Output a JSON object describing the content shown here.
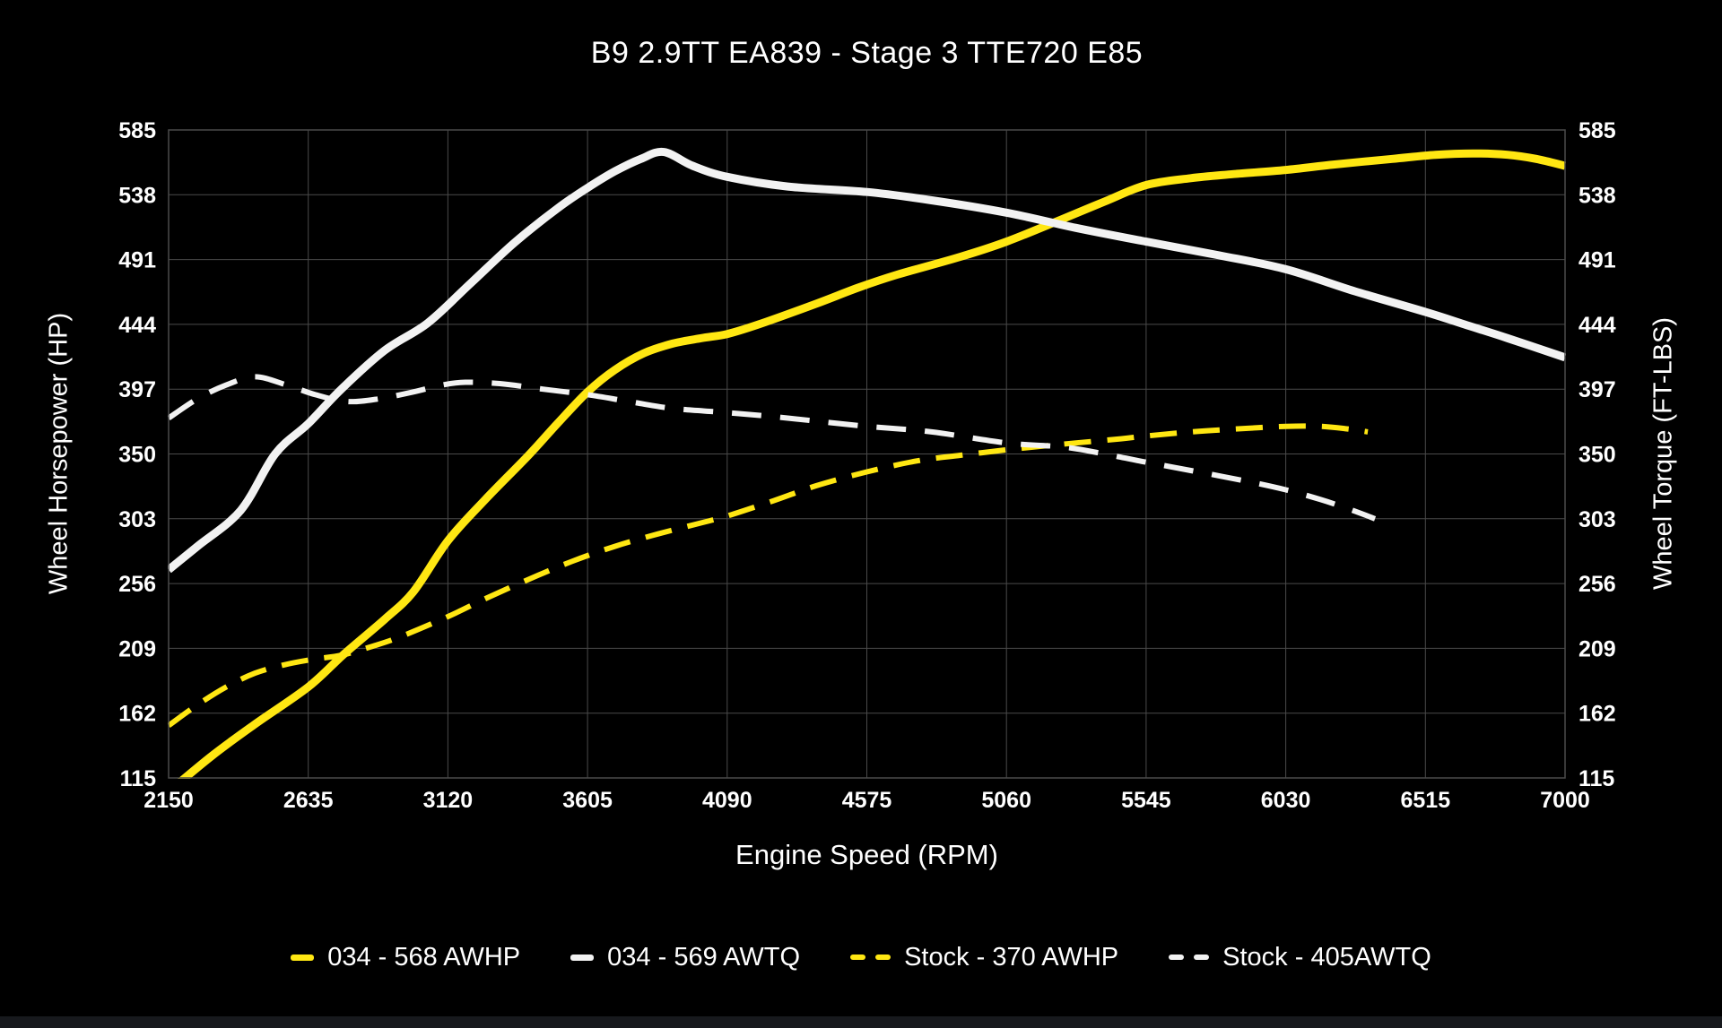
{
  "chart_data": {
    "type": "line",
    "title": "B9 2.9TT EA839 - Stage 3 TTE720 E85",
    "xlabel": "Engine Speed (RPM)",
    "ylabel_left": "Wheel Horsepower (HP)",
    "ylabel_right": "Wheel Torque (FT-LBS)",
    "x_range": [
      2150,
      7000
    ],
    "y_range": [
      115,
      585
    ],
    "x_ticks": [
      2150,
      2635,
      3120,
      3605,
      4090,
      4575,
      5060,
      5545,
      6030,
      6515,
      7000
    ],
    "y_ticks": [
      115,
      162,
      209,
      256,
      303,
      350,
      397,
      444,
      491,
      538,
      585
    ],
    "grid": true,
    "legend_position": "bottom",
    "colors": {
      "yellow": "#ffe712",
      "white": "#f2f2f2",
      "grid": "#4a4a4a",
      "background": "#000000",
      "text": "#ffffff"
    },
    "series": [
      {
        "name": "034 - 568 AWHP",
        "color": "yellow",
        "style": "solid",
        "points": [
          [
            2150,
            105
          ],
          [
            2300,
            131
          ],
          [
            2450,
            154
          ],
          [
            2635,
            181
          ],
          [
            2760,
            205
          ],
          [
            2900,
            230
          ],
          [
            3000,
            250
          ],
          [
            3120,
            287
          ],
          [
            3250,
            317
          ],
          [
            3400,
            349
          ],
          [
            3500,
            372
          ],
          [
            3605,
            395
          ],
          [
            3700,
            411
          ],
          [
            3800,
            423
          ],
          [
            3900,
            430
          ],
          [
            4000,
            434
          ],
          [
            4090,
            437
          ],
          [
            4200,
            444
          ],
          [
            4400,
            459
          ],
          [
            4550,
            471
          ],
          [
            4680,
            480
          ],
          [
            4900,
            493
          ],
          [
            5060,
            504
          ],
          [
            5250,
            520
          ],
          [
            5400,
            533
          ],
          [
            5545,
            545
          ],
          [
            5700,
            550
          ],
          [
            5850,
            553
          ],
          [
            6030,
            556
          ],
          [
            6200,
            560
          ],
          [
            6400,
            564
          ],
          [
            6550,
            567
          ],
          [
            6680,
            568
          ],
          [
            6800,
            567
          ],
          [
            6900,
            564
          ],
          [
            7000,
            559
          ]
        ]
      },
      {
        "name": "034 - 569 AWTQ",
        "color": "white",
        "style": "solid",
        "points": [
          [
            2150,
            266
          ],
          [
            2250,
            283
          ],
          [
            2400,
            309
          ],
          [
            2520,
            350
          ],
          [
            2635,
            372
          ],
          [
            2750,
            397
          ],
          [
            2900,
            425
          ],
          [
            3050,
            445
          ],
          [
            3200,
            474
          ],
          [
            3350,
            503
          ],
          [
            3500,
            528
          ],
          [
            3605,
            543
          ],
          [
            3700,
            555
          ],
          [
            3790,
            564
          ],
          [
            3870,
            569
          ],
          [
            3970,
            559
          ],
          [
            4090,
            551
          ],
          [
            4300,
            544
          ],
          [
            4575,
            540
          ],
          [
            4800,
            534
          ],
          [
            5060,
            525
          ],
          [
            5300,
            514
          ],
          [
            5545,
            504
          ],
          [
            5800,
            494
          ],
          [
            6030,
            484
          ],
          [
            6270,
            468
          ],
          [
            6515,
            453
          ],
          [
            6650,
            444
          ],
          [
            6800,
            434
          ],
          [
            7000,
            420
          ]
        ]
      },
      {
        "name": "Stock - 370 AWHP",
        "color": "yellow",
        "style": "dashed",
        "points": [
          [
            2150,
            153
          ],
          [
            2250,
            168
          ],
          [
            2350,
            181
          ],
          [
            2450,
            191
          ],
          [
            2550,
            197
          ],
          [
            2650,
            201
          ],
          [
            2750,
            204
          ],
          [
            2850,
            210
          ],
          [
            2950,
            217
          ],
          [
            3120,
            232
          ],
          [
            3250,
            245
          ],
          [
            3400,
            259
          ],
          [
            3550,
            272
          ],
          [
            3700,
            283
          ],
          [
            3850,
            292
          ],
          [
            4000,
            300
          ],
          [
            4090,
            305
          ],
          [
            4250,
            316
          ],
          [
            4400,
            327
          ],
          [
            4575,
            337
          ],
          [
            4750,
            345
          ],
          [
            4900,
            349
          ],
          [
            5060,
            353
          ],
          [
            5200,
            356
          ],
          [
            5302,
            358
          ],
          [
            5457,
            361
          ],
          [
            5545,
            363
          ],
          [
            5700,
            366
          ],
          [
            5850,
            368
          ],
          [
            6030,
            370
          ],
          [
            6150,
            370
          ],
          [
            6250,
            368
          ],
          [
            6315,
            366
          ]
        ]
      },
      {
        "name": "Stock - 405AWTQ",
        "color": "white",
        "style": "dashed",
        "points": [
          [
            2150,
            376
          ],
          [
            2250,
            390
          ],
          [
            2350,
            400
          ],
          [
            2450,
            406
          ],
          [
            2560,
            400
          ],
          [
            2660,
            393
          ],
          [
            2770,
            388
          ],
          [
            2880,
            390
          ],
          [
            3000,
            395
          ],
          [
            3100,
            400
          ],
          [
            3180,
            402
          ],
          [
            3300,
            401
          ],
          [
            3450,
            397
          ],
          [
            3605,
            393
          ],
          [
            3750,
            388
          ],
          [
            3900,
            383
          ],
          [
            4090,
            380
          ],
          [
            4300,
            376
          ],
          [
            4575,
            370
          ],
          [
            4800,
            366
          ],
          [
            5060,
            358
          ],
          [
            5260,
            355
          ],
          [
            5400,
            350
          ],
          [
            5545,
            344
          ],
          [
            5700,
            338
          ],
          [
            5900,
            330
          ],
          [
            6030,
            324
          ],
          [
            6150,
            317
          ],
          [
            6250,
            310
          ],
          [
            6340,
            303
          ]
        ]
      }
    ]
  }
}
